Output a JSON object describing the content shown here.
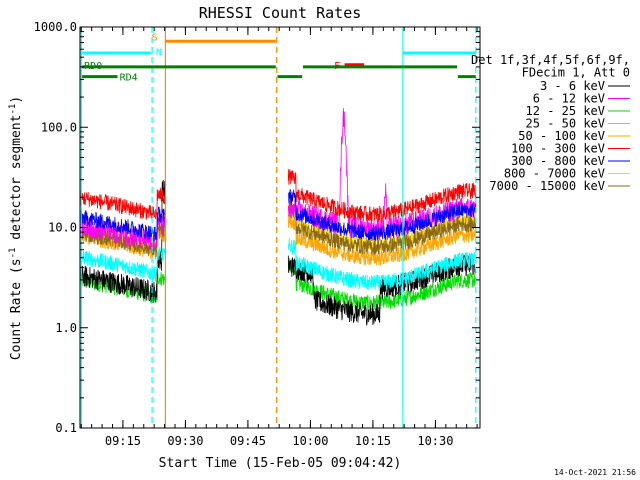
{
  "chart_data": {
    "type": "line",
    "title": "RHESSI Count Rates",
    "xlabel": "Start Time (15-Feb-05 09:04:42)",
    "ylabel_prefix": "Count Rate (s",
    "ylabel_sup": "-1",
    "ylabel_mid": " detector segment",
    "ylabel_sup2": "-1",
    "ylabel_suffix": ")",
    "y_scale": "log",
    "ylim": [
      0.1,
      1000
    ],
    "xlim_minutes": [
      0,
      96
    ],
    "x_ticks": [
      {
        "label": "09:15",
        "min": 10.3
      },
      {
        "label": "09:30",
        "min": 25.3
      },
      {
        "label": "09:45",
        "min": 40.3
      },
      {
        "label": "10:00",
        "min": 55.3
      },
      {
        "label": "10:15",
        "min": 70.3
      },
      {
        "label": "10:30",
        "min": 85.3
      }
    ],
    "y_ticks": [
      {
        "label": "1000.0",
        "v": 1000
      },
      {
        "label": "100.0",
        "v": 100
      },
      {
        "label": "10.0",
        "v": 10
      },
      {
        "label": "1.0",
        "v": 1
      },
      {
        "label": "0.1",
        "v": 0.1
      }
    ],
    "legend_header": [
      "Det 1f,3f,4f,5f,6f,9f,",
      "FDecim 1, Att 0"
    ],
    "series": [
      {
        "name": "3 - 6 keV",
        "color": "#000000",
        "pre": 3.0,
        "post": 3.1,
        "shape": "low"
      },
      {
        "name": "6 - 12 keV",
        "color": "#ff00ff",
        "pre": 9.5,
        "post": 11.5,
        "shape": "flare"
      },
      {
        "name": "12 - 25 keV",
        "color": "#00dd00",
        "pre": 2.7,
        "post": 2.2,
        "shape": "bowl"
      },
      {
        "name": "25 - 50 keV",
        "color": "#00ffff",
        "pre": 4.6,
        "post": 3.5,
        "shape": "bowl"
      },
      {
        "name": "50 - 100 keV",
        "color": "#ffa500",
        "pre": 7.5,
        "post": 6.2,
        "shape": "bowl"
      },
      {
        "name": "100 - 300 keV",
        "color": "#ff0000",
        "pre": 18,
        "post": 17,
        "shape": "bowl"
      },
      {
        "name": "300 - 800 keV",
        "color": "#0000ff",
        "pre": 11.5,
        "post": 11,
        "shape": "bowl"
      },
      {
        "name": "800 - 7000 keV",
        "color": "#ffd700",
        "pre": 9.0,
        "post": 8.6,
        "shape": "bowl"
      },
      {
        "name": "7000 - 15000 keV",
        "color": "#8b6914",
        "pre": 8.0,
        "post": 8.0,
        "shape": "bowl"
      }
    ],
    "gap_minutes": [
      21,
      50
    ],
    "vlines": [
      {
        "min": 0.3,
        "color": "#00ffff",
        "dash": false
      },
      {
        "min": 17.3,
        "color": "#00ffff",
        "dash": true
      },
      {
        "min": 20.5,
        "color": "#ff8c00",
        "dash": false
      },
      {
        "min": 47.2,
        "color": "#ff8c00",
        "dash": true
      },
      {
        "min": 77.5,
        "color": "#00ffff",
        "dash": false
      },
      {
        "min": 95.0,
        "color": "#00ffff",
        "dash": true
      }
    ],
    "state_bars": [
      {
        "color": "#00ffff",
        "v": 550,
        "from": 0.5,
        "to": 17,
        "w": 3
      },
      {
        "color": "#00ffff",
        "v": 550,
        "from": 77.5,
        "to": 95,
        "w": 3
      },
      {
        "color": "#ff8c00",
        "v": 720,
        "from": 20.5,
        "to": 47,
        "w": 3
      },
      {
        "color": "#ff0000",
        "v": 420,
        "from": 63.5,
        "to": 68.2,
        "w": 3
      },
      {
        "color": "#008000",
        "v": 400,
        "from": 0.5,
        "to": 47,
        "w": 3
      },
      {
        "color": "#008000",
        "v": 400,
        "from": 53.5,
        "to": 90.5,
        "w": 3
      },
      {
        "color": "#008000",
        "v": 320,
        "from": 0.5,
        "to": 9,
        "w": 3
      },
      {
        "color": "#008000",
        "v": 320,
        "from": 47.4,
        "to": 53.3,
        "w": 3
      },
      {
        "color": "#008000",
        "v": 320,
        "from": 90.7,
        "to": 95,
        "w": 3
      }
    ],
    "state_labels": [
      {
        "text": "RD0",
        "color": "#008000",
        "min": 1.0,
        "v": 420
      },
      {
        "text": "RD4",
        "color": "#008000",
        "min": 9.5,
        "v": 320
      },
      {
        "text": "S",
        "color": "#ff8c00",
        "min": 17.2,
        "v": 800
      },
      {
        "text": "N",
        "color": "#00ffff",
        "min": 18.2,
        "v": 570
      },
      {
        "text": "F",
        "color": "#ff0000",
        "min": 61.0,
        "v": 420
      }
    ]
  },
  "footer_timestamp": "14-Oct-2021 21:56"
}
